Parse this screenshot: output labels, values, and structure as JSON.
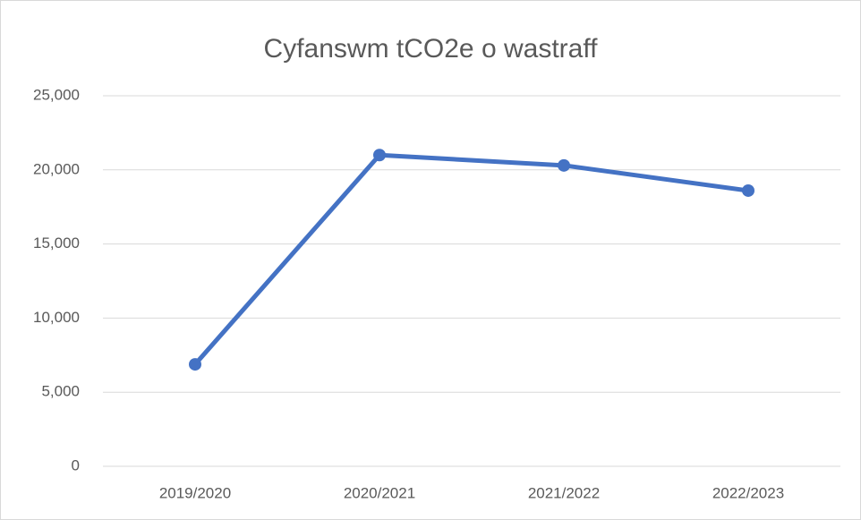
{
  "chart_data": {
    "type": "line",
    "title": "Cyfanswm tCO2e o wastraff",
    "categories": [
      "2019/2020",
      "2020/2021",
      "2021/2022",
      "2022/2023"
    ],
    "series": [
      {
        "name": "tCO2e",
        "color": "#4472c4",
        "values": [
          6880,
          21000,
          20300,
          18600
        ]
      }
    ],
    "ylim": [
      0,
      25000
    ],
    "yticks": [
      0,
      {
        "value": 5000,
        "label": "5,000"
      },
      {
        "value": 10000,
        "label": "10,000"
      },
      {
        "value": 15000,
        "label": "15,000"
      },
      {
        "value": 20000,
        "label": "20,000"
      },
      {
        "value": 25000,
        "label": "25,000"
      }
    ],
    "grid": true
  }
}
